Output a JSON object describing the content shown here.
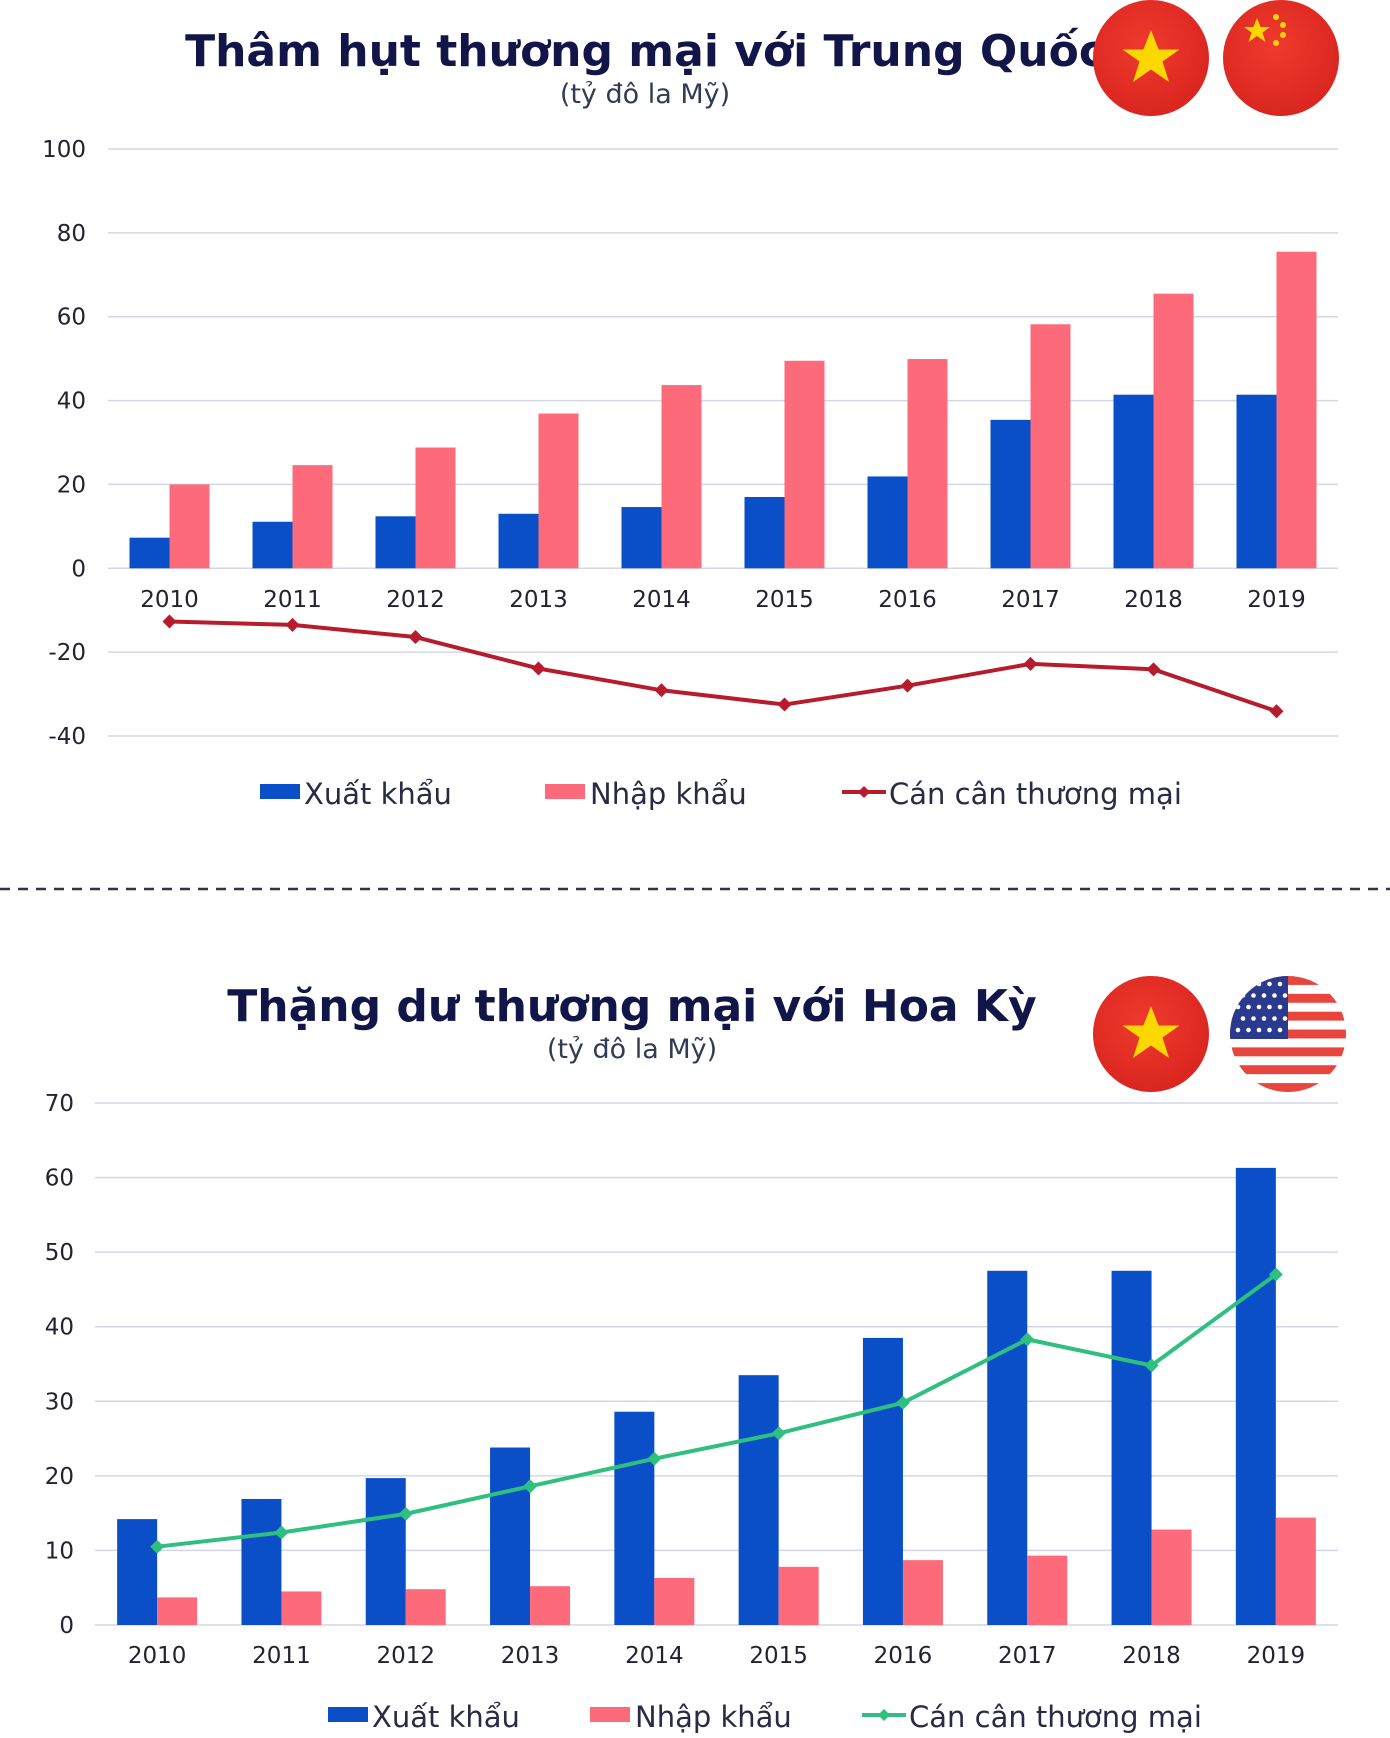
{
  "chart_data": [
    {
      "type": "bar",
      "title": "Thâm hụt thương mại với Trung Quốc",
      "subtitle": "(tỷ đô la Mỹ)",
      "categories": [
        "2010",
        "2011",
        "2012",
        "2013",
        "2014",
        "2015",
        "2016",
        "2017",
        "2018",
        "2019"
      ],
      "series": [
        {
          "name": "Xuất khẩu",
          "type": "bar",
          "color": "#0a4fc7",
          "values": [
            7.3,
            11.1,
            12.4,
            13.0,
            14.6,
            17.0,
            21.9,
            35.4,
            41.4,
            41.4
          ]
        },
        {
          "name": "Nhập khẩu",
          "type": "bar",
          "color": "#fd6b7a",
          "values": [
            20.0,
            24.6,
            28.8,
            36.9,
            43.7,
            49.5,
            49.9,
            58.2,
            65.5,
            75.5
          ]
        },
        {
          "name": "Cán cân thương mại",
          "type": "line",
          "color": "#b71c2c",
          "values": [
            -12.7,
            -13.5,
            -16.4,
            -23.9,
            -29.1,
            -32.5,
            -28.0,
            -22.8,
            -24.1,
            -34.1
          ]
        }
      ],
      "ylim": [
        -40,
        100
      ],
      "yticks": [
        100,
        80,
        60,
        40,
        20,
        0,
        -20,
        -40
      ],
      "grid": true,
      "legend": "bottom",
      "flags": [
        "vietnam-flag",
        "china-flag"
      ]
    },
    {
      "type": "bar",
      "title": "Thặng dư thương mại với Hoa Kỳ",
      "subtitle": "(tỷ đô la Mỹ)",
      "categories": [
        "2010",
        "2011",
        "2012",
        "2013",
        "2014",
        "2015",
        "2016",
        "2017",
        "2018",
        "2019"
      ],
      "series": [
        {
          "name": "Xuất khẩu",
          "type": "bar",
          "color": "#0a4fc7",
          "values": [
            14.2,
            16.9,
            19.7,
            23.8,
            28.6,
            33.5,
            38.5,
            47.5,
            47.5,
            61.3
          ]
        },
        {
          "name": "Nhập khẩu",
          "type": "bar",
          "color": "#fd6b7a",
          "values": [
            3.7,
            4.5,
            4.8,
            5.2,
            6.3,
            7.8,
            8.7,
            9.3,
            12.8,
            14.4
          ]
        },
        {
          "name": "Cán cân thương mại",
          "type": "line",
          "color": "#2fbf7e",
          "values": [
            10.5,
            12.4,
            14.9,
            18.6,
            22.3,
            25.7,
            29.8,
            38.3,
            34.8,
            47.0
          ]
        }
      ],
      "ylim": [
        0,
        70
      ],
      "yticks": [
        70,
        60,
        50,
        40,
        30,
        20,
        10,
        0
      ],
      "grid": true,
      "legend": "bottom",
      "flags": [
        "vietnam-flag",
        "usa-flag"
      ]
    }
  ]
}
